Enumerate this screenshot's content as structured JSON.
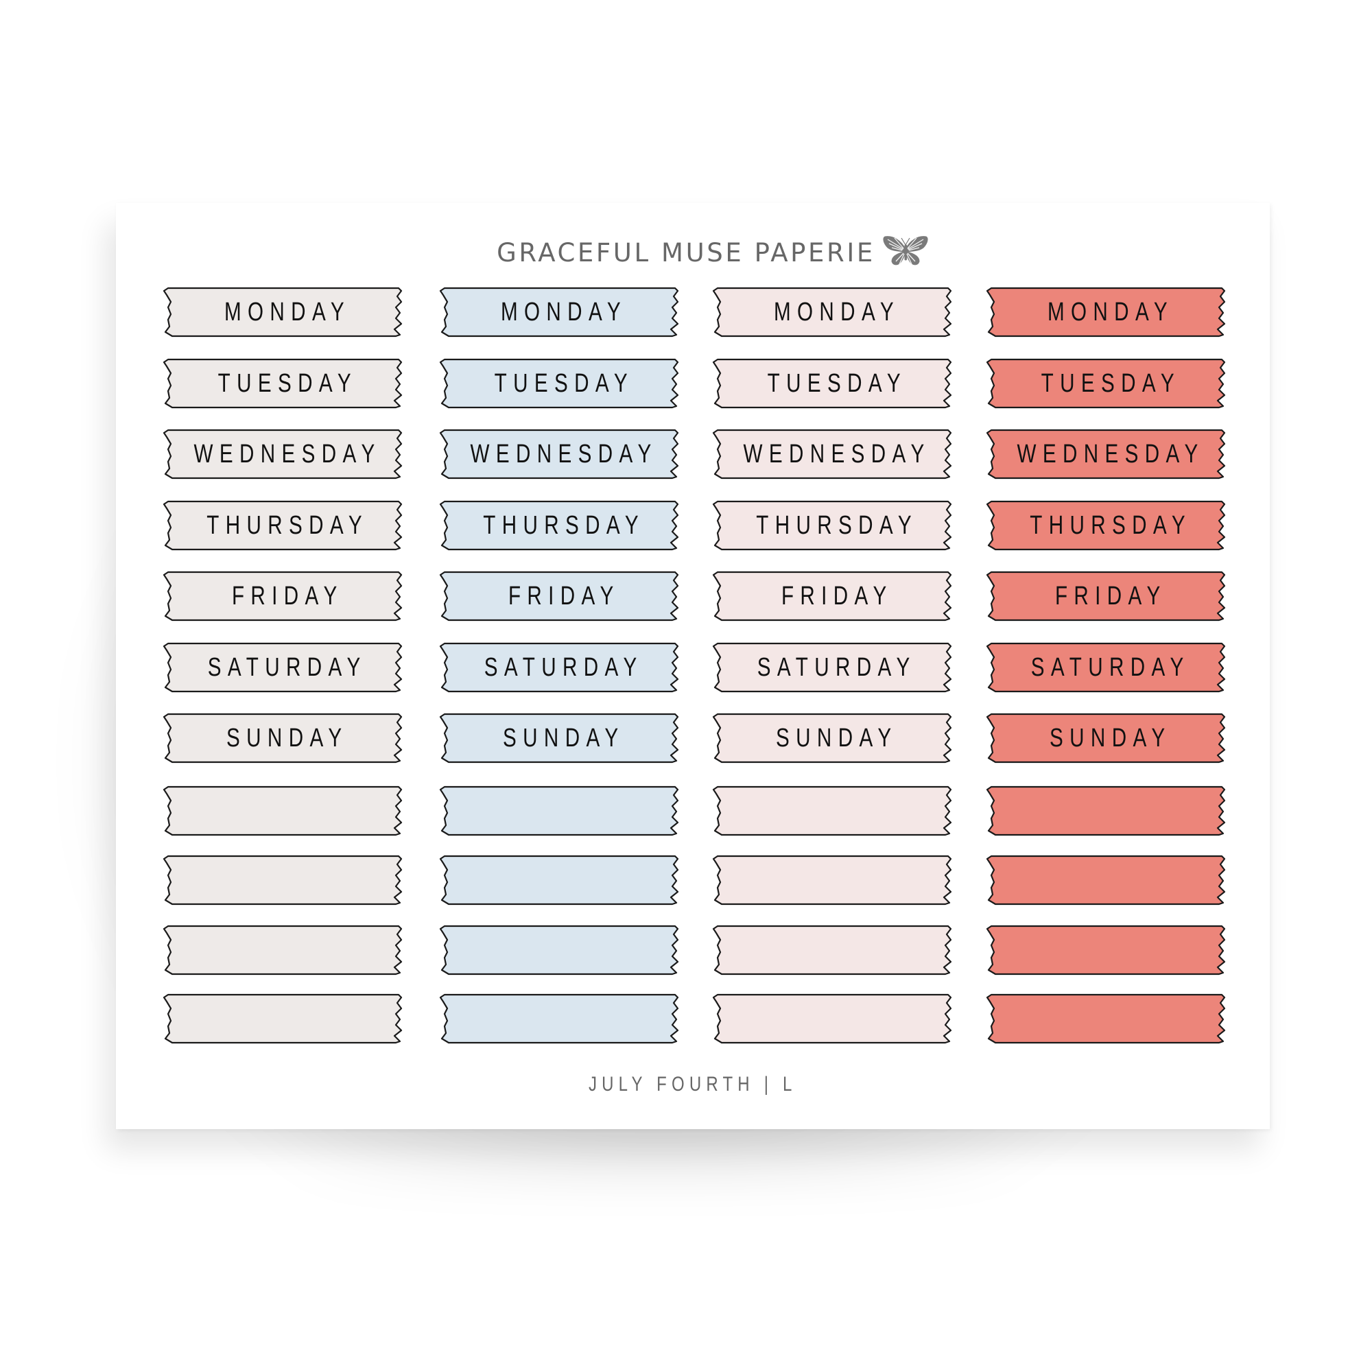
{
  "sheet": {
    "brand": "GRACEFUL MUSE PAPERIE",
    "brand_icon": "butterfly-icon",
    "footer": "JULY FOURTH | L",
    "background": "#ffffff"
  },
  "columns": [
    {
      "name": "warm-gray",
      "color": "#eeeae8"
    },
    {
      "name": "light-blue",
      "color": "#dae6ef"
    },
    {
      "name": "blush-pink",
      "color": "#f4e7e6"
    },
    {
      "name": "coral",
      "color": "#ec857a"
    }
  ],
  "labels": [
    "MONDAY",
    "TUESDAY",
    "WEDNESDAY",
    "THURSDAY",
    "FRIDAY",
    "SATURDAY",
    "SUNDAY",
    "",
    "",
    "",
    ""
  ],
  "blank_rows": 4,
  "outline_color": "#1a1a1a"
}
